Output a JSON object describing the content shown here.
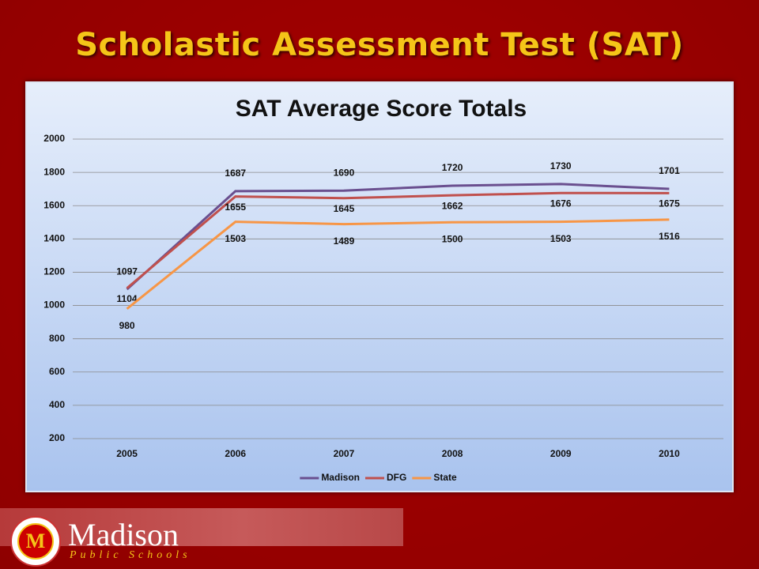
{
  "slide": {
    "title": "Scholastic Assessment Test (SAT)",
    "logo": {
      "letter": "M",
      "name": "Madison",
      "tagline": "Public Schools"
    }
  },
  "chart_data": {
    "type": "line",
    "title": "SAT Average Score Totals",
    "categories": [
      "2005",
      "2006",
      "2007",
      "2008",
      "2009",
      "2010"
    ],
    "series": [
      {
        "name": "Madison",
        "color": "#6a4f8f",
        "values": [
          1097,
          1687,
          1690,
          1720,
          1730,
          1701
        ]
      },
      {
        "name": "DFG",
        "color": "#c0504d",
        "values": [
          1104,
          1655,
          1645,
          1662,
          1676,
          1675
        ]
      },
      {
        "name": "State",
        "color": "#f79646",
        "values": [
          980,
          1503,
          1489,
          1500,
          1503,
          1516
        ]
      }
    ],
    "ylim": [
      200,
      2000
    ],
    "yticks": [
      200,
      400,
      600,
      800,
      1000,
      1200,
      1400,
      1600,
      1800,
      2000
    ],
    "grid": true,
    "legend": "bottom",
    "data_labels": true
  }
}
